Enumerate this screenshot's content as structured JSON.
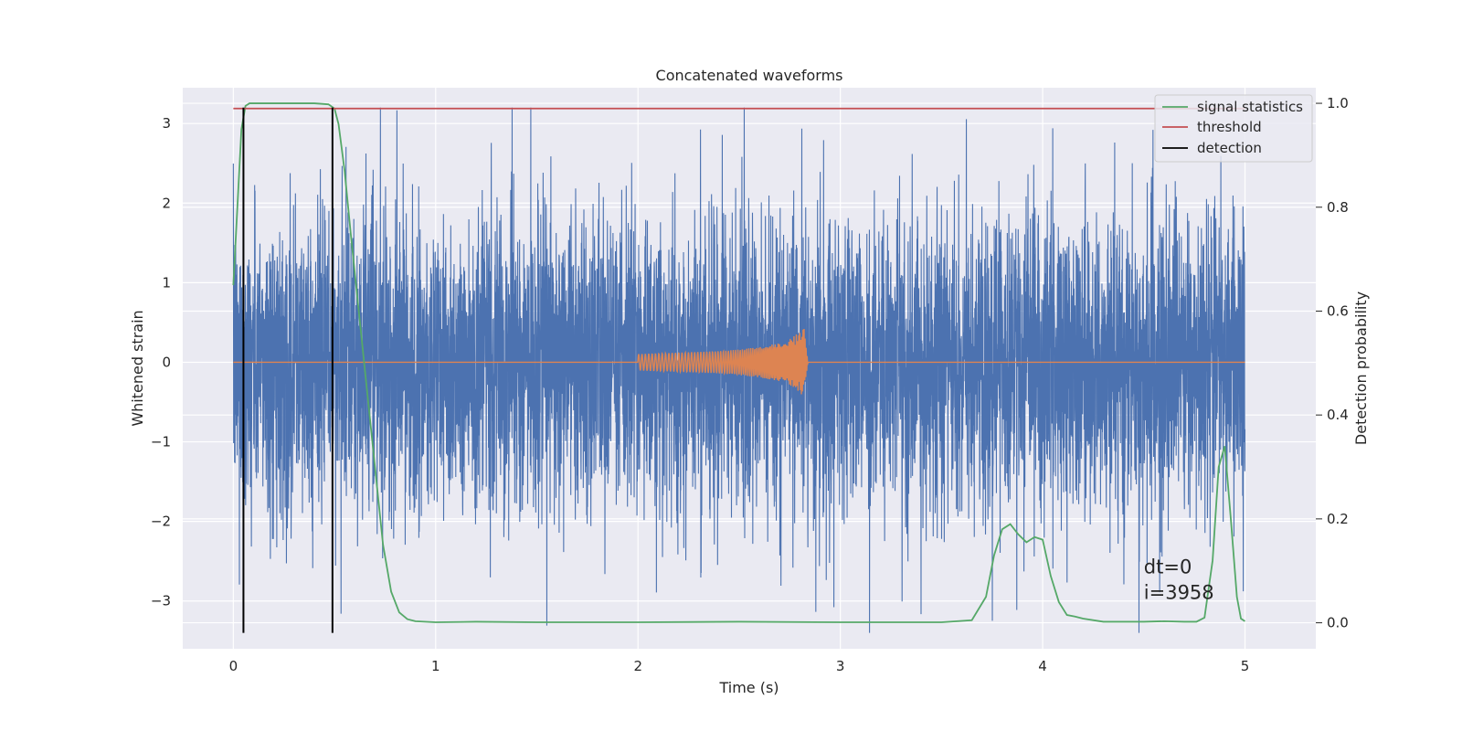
{
  "chart_data": {
    "type": "line",
    "title": "Concatenated waveforms",
    "xlabel": "Time (s)",
    "ylabel": "Whitened strain",
    "ylabel_right": "Detection probability",
    "xlim": [
      -0.25,
      5.35
    ],
    "ylim_left": [
      -3.6,
      3.45
    ],
    "ylim_right": [
      -0.05,
      1.03
    ],
    "xticks": [
      0,
      1,
      2,
      3,
      4,
      5
    ],
    "xtick_labels": [
      "0",
      "1",
      "2",
      "3",
      "4",
      "5"
    ],
    "yticks_left": [
      -3,
      -2,
      -1,
      0,
      1,
      2,
      3
    ],
    "ytick_labels_left": [
      "−3",
      "−2",
      "−1",
      "0",
      "1",
      "2",
      "3"
    ],
    "yticks_right": [
      0.0,
      0.2,
      0.4,
      0.6,
      0.8,
      1.0
    ],
    "ytick_labels_right": [
      "0.0",
      "0.2",
      "0.4",
      "0.6",
      "0.8",
      "1.0"
    ],
    "grid": true,
    "legend_position": "top-right",
    "background_color": "#EAEAF2",
    "series": [
      {
        "name": "",
        "axis": "left",
        "color": "#4C72B0",
        "kind": "noise",
        "x_range": [
          0,
          5
        ],
        "typical_amplitude": 0.9,
        "peak_max": 3.2,
        "peak_min": -3.4
      },
      {
        "name": "",
        "axis": "left",
        "color": "#DD8452",
        "kind": "chirp",
        "x": [
          0,
          2.0,
          2.1,
          2.2,
          2.3,
          2.4,
          2.5,
          2.6,
          2.7,
          2.75,
          2.8,
          2.82,
          2.84,
          5
        ],
        "envelope": [
          0,
          0.1,
          0.11,
          0.12,
          0.13,
          0.14,
          0.16,
          0.19,
          0.24,
          0.29,
          0.38,
          0.44,
          0.0,
          0
        ]
      },
      {
        "name": "signal statistics",
        "axis": "right",
        "color": "#55A868",
        "x": [
          0,
          0.02,
          0.04,
          0.06,
          0.08,
          0.12,
          0.2,
          0.3,
          0.4,
          0.47,
          0.5,
          0.52,
          0.55,
          0.58,
          0.62,
          0.66,
          0.7,
          0.74,
          0.78,
          0.82,
          0.86,
          0.9,
          1.0,
          1.2,
          1.5,
          2.0,
          2.5,
          3.0,
          3.5,
          3.65,
          3.72,
          3.76,
          3.8,
          3.84,
          3.88,
          3.92,
          3.96,
          4.0,
          4.04,
          4.08,
          4.12,
          4.16,
          4.2,
          4.3,
          4.5,
          4.6,
          4.7,
          4.76,
          4.8,
          4.84,
          4.87,
          4.9,
          4.93,
          4.96,
          4.98,
          5.0
        ],
        "y": [
          0.65,
          0.8,
          0.95,
          0.995,
          1.0,
          1.0,
          1.0,
          1.0,
          1.0,
          0.998,
          0.99,
          0.96,
          0.87,
          0.75,
          0.6,
          0.45,
          0.3,
          0.15,
          0.06,
          0.02,
          0.007,
          0.003,
          0.001,
          0.002,
          0.001,
          0.001,
          0.002,
          0.001,
          0.001,
          0.005,
          0.05,
          0.13,
          0.18,
          0.19,
          0.17,
          0.155,
          0.165,
          0.16,
          0.09,
          0.04,
          0.015,
          0.012,
          0.008,
          0.002,
          0.002,
          0.003,
          0.002,
          0.002,
          0.01,
          0.12,
          0.3,
          0.34,
          0.2,
          0.05,
          0.008,
          0.003
        ]
      },
      {
        "name": "threshold",
        "axis": "right",
        "color": "#C44E52",
        "x": [
          0,
          5
        ],
        "y": [
          0.99,
          0.99
        ]
      },
      {
        "name": "detection",
        "axis": "left",
        "color": "#000000",
        "kind": "vlines",
        "x": [
          0.05,
          0.49
        ],
        "ymin": -3.4,
        "ymax": 3.2
      }
    ],
    "annotation": {
      "lines": [
        "dt=0",
        "i=3958"
      ],
      "x": 4.5,
      "y": -2.65
    }
  }
}
